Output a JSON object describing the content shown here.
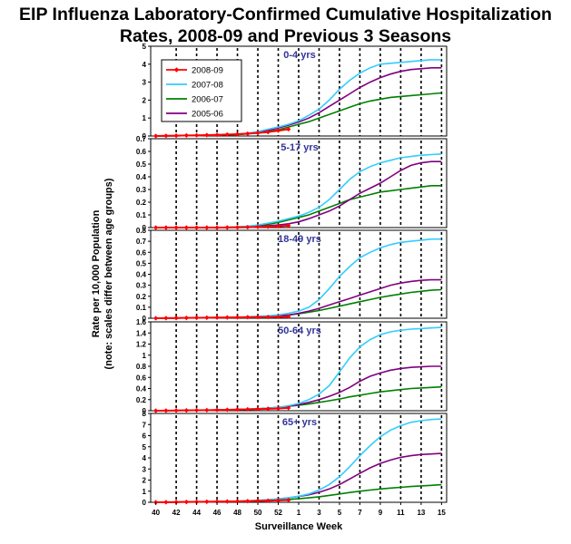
{
  "title_line1": "EIP Influenza Laboratory-Confirmed Cumulative Hospitalization",
  "title_line2": "Rates, 2008-09 and Previous 3 Seasons",
  "chart_data": {
    "type": "line",
    "xlabel": "Surveillance Week",
    "ylabel_line1": "Rate per 10,000 Population",
    "ylabel_line2": "(note: scales differ between age groups)",
    "x_tick_labels": [
      "40",
      "42",
      "44",
      "46",
      "48",
      "50",
      "52",
      "1",
      "3",
      "5",
      "7",
      "9",
      "11",
      "13",
      "15"
    ],
    "weeks": [
      "40",
      "41",
      "42",
      "43",
      "44",
      "45",
      "46",
      "47",
      "48",
      "49",
      "50",
      "51",
      "52",
      "1",
      "2",
      "3",
      "4",
      "5",
      "6",
      "7",
      "8",
      "9",
      "10",
      "11",
      "12",
      "13",
      "14",
      "15",
      "16"
    ],
    "colors": {
      "2008-09": "#ff0000",
      "2007-08": "#33ccff",
      "2006-07": "#008000",
      "2005-06": "#800080"
    },
    "legend": [
      "2008-09",
      "2007-08",
      "2006-07",
      "2005-06"
    ],
    "panels": [
      {
        "label": "0-4 yrs",
        "ylim": [
          0,
          5
        ],
        "yticks": [
          "0",
          "1",
          "2",
          "3",
          "4",
          "5"
        ],
        "series": [
          {
            "name": "2008-09",
            "values": [
              0,
              0.01,
              0.02,
              0.03,
              0.04,
              0.05,
              0.06,
              0.08,
              0.1,
              0.13,
              0.17,
              0.22,
              0.3,
              0.38
            ]
          },
          {
            "name": "2007-08",
            "values": [
              0,
              0,
              0.01,
              0.02,
              0.03,
              0.04,
              0.05,
              0.07,
              0.1,
              0.15,
              0.25,
              0.38,
              0.5,
              0.65,
              0.85,
              1.15,
              1.5,
              2,
              2.6,
              3.1,
              3.5,
              3.8,
              4,
              4.05,
              4.1,
              4.15,
              4.2,
              4.25,
              4.25
            ]
          },
          {
            "name": "2006-07",
            "values": [
              0,
              0,
              0.01,
              0.02,
              0.03,
              0.04,
              0.05,
              0.06,
              0.08,
              0.12,
              0.18,
              0.25,
              0.35,
              0.5,
              0.65,
              0.8,
              1,
              1.2,
              1.4,
              1.6,
              1.8,
              1.95,
              2.05,
              2.15,
              2.2,
              2.25,
              2.3,
              2.35,
              2.4
            ]
          },
          {
            "name": "2005-06",
            "values": [
              0,
              0,
              0.01,
              0.02,
              0.03,
              0.04,
              0.05,
              0.07,
              0.1,
              0.15,
              0.22,
              0.32,
              0.45,
              0.6,
              0.78,
              1,
              1.3,
              1.65,
              2,
              2.35,
              2.7,
              3,
              3.25,
              3.45,
              3.6,
              3.7,
              3.75,
              3.8,
              3.8
            ]
          }
        ]
      },
      {
        "label": "5-17 yrs",
        "ylim": [
          0,
          0.7
        ],
        "yticks": [
          "0",
          "0.1",
          "0.2",
          "0.3",
          "0.4",
          "0.5",
          "0.6",
          "0.7"
        ],
        "series": [
          {
            "name": "2008-09",
            "values": [
              0,
              0,
              0,
              0,
              0,
              0,
              0,
              0.001,
              0.002,
              0.003,
              0.005,
              0.007,
              0.01,
              0.015
            ]
          },
          {
            "name": "2007-08",
            "values": [
              0,
              0,
              0,
              0,
              0,
              0,
              0,
              0.002,
              0.005,
              0.01,
              0.02,
              0.035,
              0.05,
              0.07,
              0.09,
              0.12,
              0.16,
              0.22,
              0.3,
              0.38,
              0.44,
              0.48,
              0.51,
              0.53,
              0.55,
              0.56,
              0.57,
              0.575,
              0.58
            ]
          },
          {
            "name": "2006-07",
            "values": [
              0,
              0,
              0,
              0,
              0,
              0,
              0,
              0.002,
              0.005,
              0.01,
              0.015,
              0.025,
              0.04,
              0.06,
              0.08,
              0.1,
              0.13,
              0.16,
              0.19,
              0.22,
              0.24,
              0.26,
              0.28,
              0.29,
              0.3,
              0.31,
              0.32,
              0.33,
              0.33
            ]
          },
          {
            "name": "2005-06",
            "values": [
              0,
              0,
              0,
              0,
              0,
              0,
              0,
              0.001,
              0.003,
              0.006,
              0.01,
              0.015,
              0.02,
              0.03,
              0.045,
              0.07,
              0.1,
              0.13,
              0.17,
              0.22,
              0.27,
              0.31,
              0.35,
              0.4,
              0.45,
              0.49,
              0.51,
              0.52,
              0.52
            ]
          }
        ]
      },
      {
        "label": "18-49 yrs",
        "ylim": [
          0,
          0.8
        ],
        "yticks": [
          "0",
          "0.1",
          "0.2",
          "0.3",
          "0.4",
          "0.5",
          "0.6",
          "0.7",
          "0.8"
        ],
        "series": [
          {
            "name": "2008-09",
            "values": [
              0,
              0.001,
              0.002,
              0.003,
              0.004,
              0.005,
              0.006,
              0.007,
              0.008,
              0.009,
              0.01,
              0.011,
              0.012,
              0.015
            ]
          },
          {
            "name": "2007-08",
            "values": [
              0,
              0.001,
              0.002,
              0.003,
              0.004,
              0.005,
              0.006,
              0.008,
              0.01,
              0.013,
              0.017,
              0.022,
              0.03,
              0.045,
              0.065,
              0.1,
              0.17,
              0.27,
              0.38,
              0.47,
              0.55,
              0.6,
              0.64,
              0.67,
              0.69,
              0.7,
              0.71,
              0.72,
              0.72
            ]
          },
          {
            "name": "2006-07",
            "values": [
              0,
              0.001,
              0.002,
              0.003,
              0.004,
              0.005,
              0.006,
              0.007,
              0.008,
              0.01,
              0.012,
              0.015,
              0.02,
              0.03,
              0.04,
              0.055,
              0.07,
              0.09,
              0.11,
              0.13,
              0.15,
              0.17,
              0.19,
              0.205,
              0.22,
              0.235,
              0.245,
              0.255,
              0.26
            ]
          },
          {
            "name": "2005-06",
            "values": [
              0,
              0.001,
              0.002,
              0.003,
              0.004,
              0.005,
              0.006,
              0.007,
              0.008,
              0.01,
              0.013,
              0.017,
              0.022,
              0.03,
              0.045,
              0.065,
              0.09,
              0.12,
              0.15,
              0.18,
              0.21,
              0.24,
              0.27,
              0.3,
              0.32,
              0.335,
              0.345,
              0.35,
              0.35
            ]
          }
        ]
      },
      {
        "label": "50-64 yrs",
        "ylim": [
          0,
          1.6
        ],
        "yticks": [
          "0",
          "0.2",
          "0.4",
          "0.6",
          "0.8",
          "1",
          "1.2",
          "1.4",
          "1.6"
        ],
        "series": [
          {
            "name": "2008-09",
            "values": [
              0,
              0.002,
              0.004,
              0.006,
              0.008,
              0.01,
              0.013,
              0.016,
              0.02,
              0.025,
              0.03,
              0.035,
              0.04,
              0.05
            ]
          },
          {
            "name": "2007-08",
            "values": [
              0,
              0.002,
              0.004,
              0.006,
              0.008,
              0.01,
              0.013,
              0.017,
              0.022,
              0.028,
              0.035,
              0.045,
              0.06,
              0.09,
              0.13,
              0.2,
              0.3,
              0.45,
              0.7,
              0.95,
              1.15,
              1.28,
              1.37,
              1.42,
              1.45,
              1.47,
              1.48,
              1.49,
              1.5
            ]
          },
          {
            "name": "2006-07",
            "values": [
              0,
              0.002,
              0.004,
              0.006,
              0.008,
              0.01,
              0.013,
              0.017,
              0.022,
              0.028,
              0.035,
              0.045,
              0.06,
              0.08,
              0.1,
              0.12,
              0.15,
              0.18,
              0.21,
              0.25,
              0.28,
              0.31,
              0.34,
              0.36,
              0.38,
              0.4,
              0.41,
              0.42,
              0.43
            ]
          },
          {
            "name": "2005-06",
            "values": [
              0,
              0.002,
              0.004,
              0.006,
              0.008,
              0.01,
              0.013,
              0.017,
              0.022,
              0.028,
              0.035,
              0.045,
              0.06,
              0.08,
              0.11,
              0.15,
              0.2,
              0.26,
              0.33,
              0.42,
              0.53,
              0.62,
              0.68,
              0.73,
              0.76,
              0.78,
              0.79,
              0.8,
              0.8
            ]
          }
        ]
      },
      {
        "label": "65+ yrs",
        "ylim": [
          0,
          8
        ],
        "yticks": [
          "0",
          "1",
          "2",
          "3",
          "4",
          "5",
          "6",
          "7",
          "8"
        ],
        "series": [
          {
            "name": "2008-09",
            "values": [
              0,
              0.01,
              0.02,
              0.03,
              0.04,
              0.05,
              0.06,
              0.07,
              0.08,
              0.1,
              0.12,
              0.14,
              0.17,
              0.2
            ]
          },
          {
            "name": "2007-08",
            "values": [
              0,
              0.01,
              0.02,
              0.03,
              0.04,
              0.05,
              0.06,
              0.08,
              0.1,
              0.13,
              0.17,
              0.22,
              0.3,
              0.4,
              0.55,
              0.75,
              1.1,
              1.6,
              2.3,
              3.2,
              4.2,
              5.1,
              5.9,
              6.5,
              6.9,
              7.2,
              7.35,
              7.45,
              7.5
            ]
          },
          {
            "name": "2006-07",
            "values": [
              0,
              0.01,
              0.02,
              0.03,
              0.04,
              0.05,
              0.06,
              0.07,
              0.08,
              0.1,
              0.12,
              0.15,
              0.2,
              0.25,
              0.32,
              0.4,
              0.5,
              0.62,
              0.75,
              0.88,
              1,
              1.1,
              1.2,
              1.28,
              1.35,
              1.42,
              1.48,
              1.53,
              1.58
            ]
          },
          {
            "name": "2005-06",
            "values": [
              0,
              0.01,
              0.02,
              0.03,
              0.04,
              0.05,
              0.06,
              0.08,
              0.1,
              0.13,
              0.17,
              0.22,
              0.3,
              0.4,
              0.52,
              0.68,
              0.9,
              1.2,
              1.6,
              2.1,
              2.6,
              3.1,
              3.5,
              3.8,
              4.05,
              4.2,
              4.3,
              4.35,
              4.4
            ]
          }
        ]
      }
    ]
  }
}
